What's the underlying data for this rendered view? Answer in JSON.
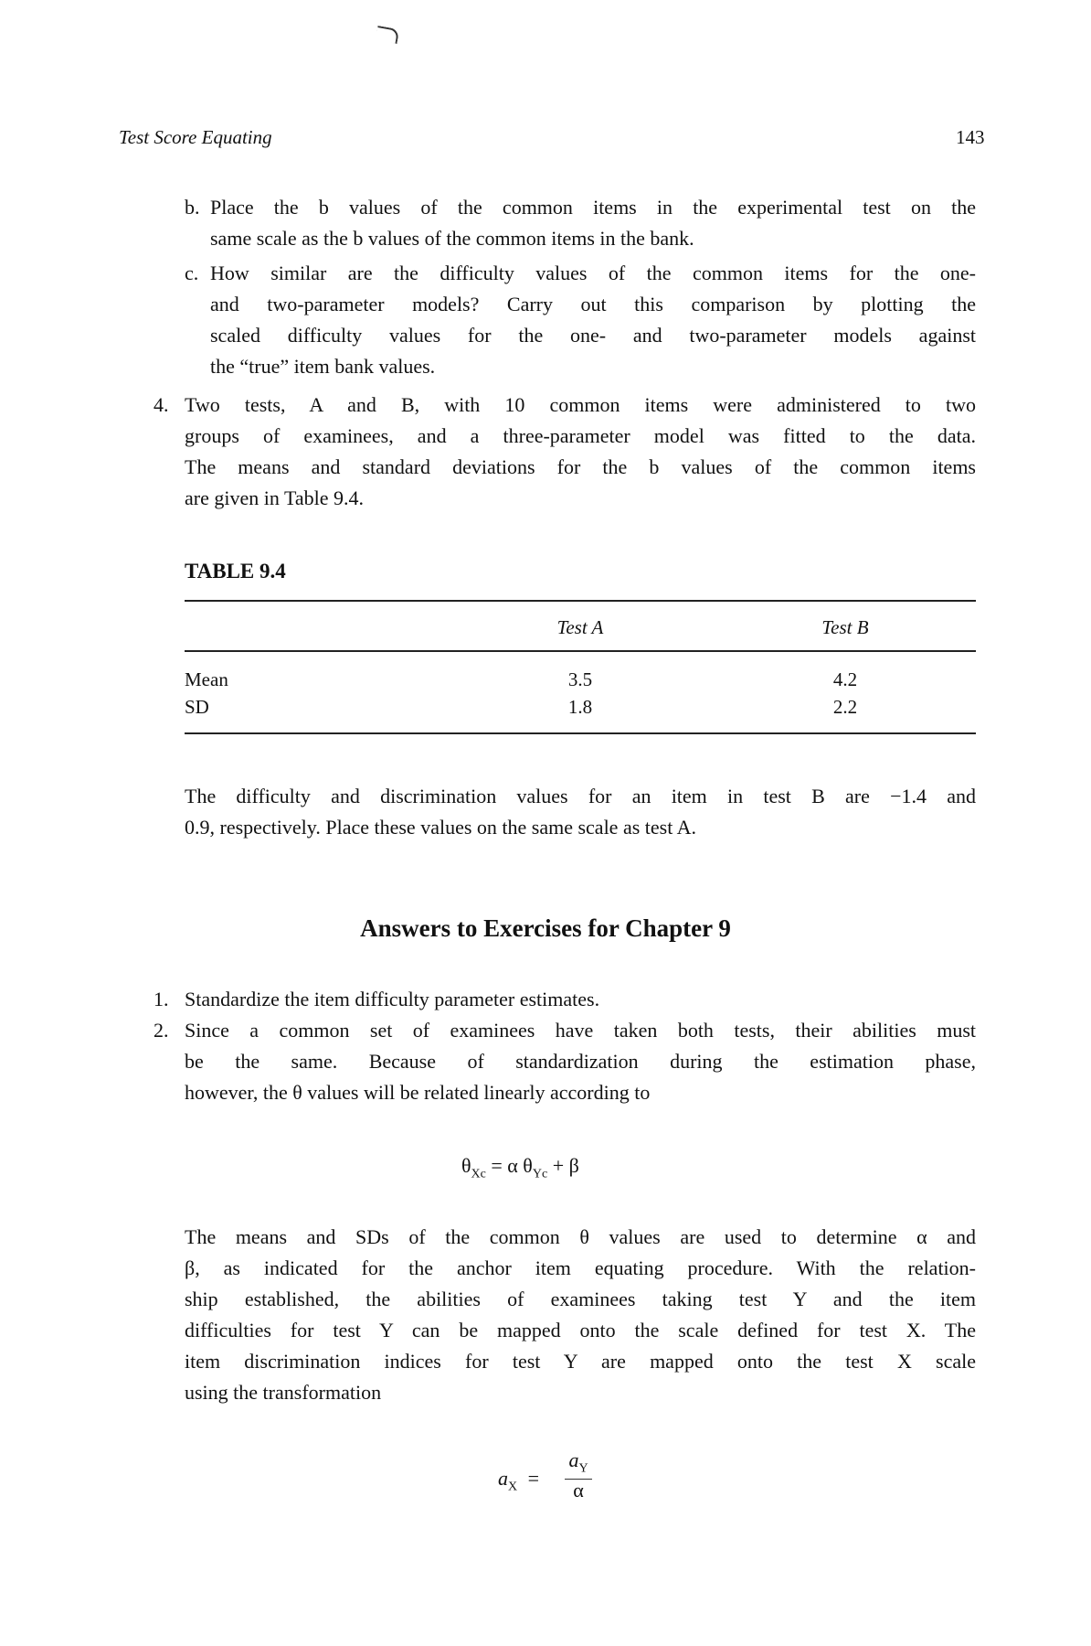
{
  "header": {
    "running_title": "Test Score Equating",
    "page_number": "143"
  },
  "item_b": {
    "label": "b.",
    "lines": [
      "Place the b values of the common items in the experimental test on the",
      "same scale as the b values of the common items in the bank."
    ]
  },
  "item_c": {
    "label": "c.",
    "lines": [
      "How similar are the difficulty values of the common items for the one-",
      "and two-parameter models? Carry out this comparison by plotting the",
      "scaled difficulty values for the one- and two-parameter models against",
      "the “true” item bank values."
    ]
  },
  "item_4": {
    "label": "4.",
    "lines": [
      "Two tests, A and B, with 10 common items were administered to two",
      "groups of examinees, and a three-parameter model was fitted to the data.",
      "The means and standard deviations for the b values of the common items",
      "are given in Table 9.4."
    ]
  },
  "table": {
    "title": "TABLE 9.4",
    "columns": [
      "Test A",
      "Test B"
    ],
    "rows": [
      {
        "label": "Mean",
        "values": [
          "3.5",
          "4.2"
        ]
      },
      {
        "label": "SD",
        "values": [
          "1.8",
          "2.2"
        ]
      }
    ]
  },
  "after_table": {
    "lines": [
      "The difficulty and discrimination values for an item in test B are −1.4 and",
      "0.9, respectively. Place these values on the same scale as test A."
    ]
  },
  "answers": {
    "heading": "Answers to Exercises for Chapter 9",
    "a1": {
      "label": "1.",
      "text": "Standardize the item difficulty parameter estimates."
    },
    "a2": {
      "label": "2.",
      "lines": [
        "Since a common set of examinees have taken both tests, their abilities must",
        "be the same. Because of standardization during the estimation phase,",
        "however, the θ values will be related linearly according to"
      ]
    },
    "eq1": {
      "lhs": "θ",
      "lhs_sub": "Xc",
      "mid": " = α θ",
      "mid_sub": "Yc",
      "rhs": " + β"
    },
    "para": {
      "lines": [
        "The means and SDs of the common θ values are used to determine α and",
        "β, as indicated for the anchor item equating procedure. With the relation-",
        "ship established, the abilities of examinees taking test Y and the item",
        "difficulties for test Y can be mapped onto the scale defined for test X. The",
        "item discrimination indices for test Y are mapped onto the test X scale",
        "using the transformation"
      ]
    },
    "eq2": {
      "lhs": "a",
      "lhs_sub": "X",
      "eq": "=",
      "num": "a",
      "num_sub": "Y",
      "den": "α"
    }
  }
}
